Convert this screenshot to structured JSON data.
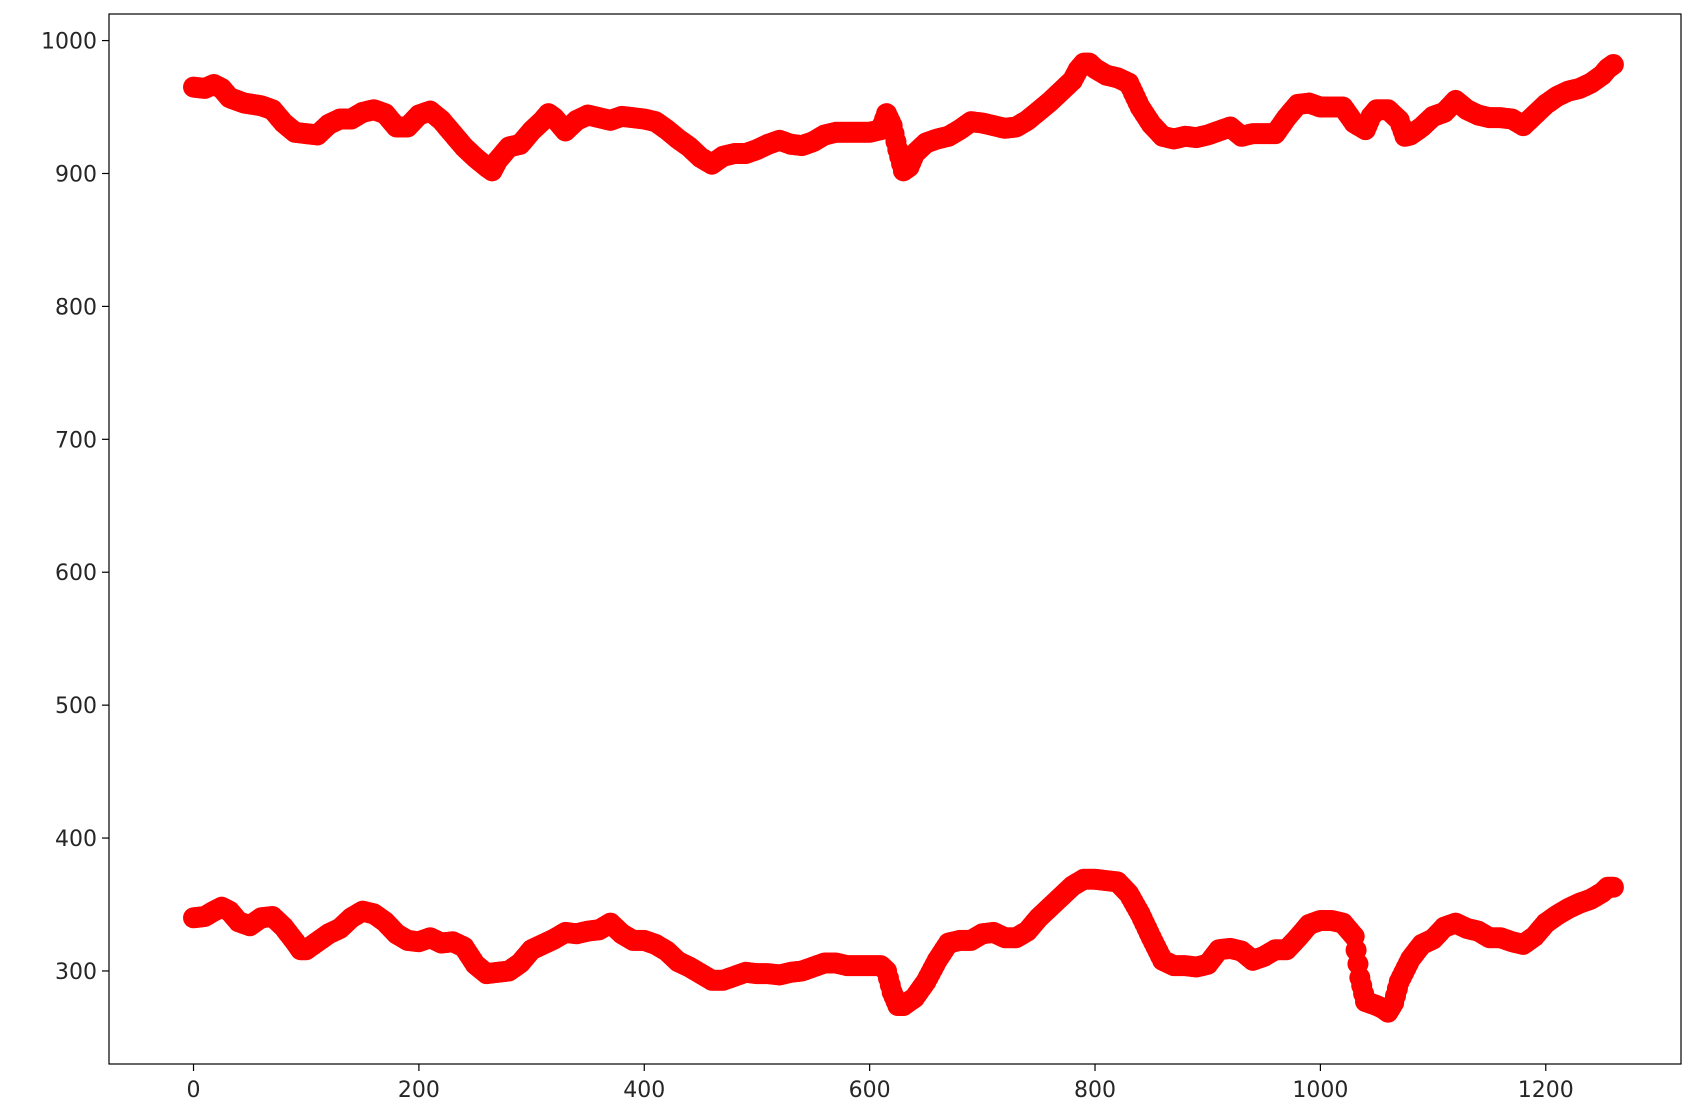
{
  "chart_data": {
    "type": "scatter",
    "title": "",
    "xlabel": "",
    "ylabel": "",
    "xlim": [
      -75,
      1320
    ],
    "ylim": [
      230,
      1020
    ],
    "xticks": [
      0,
      200,
      400,
      600,
      800,
      1000,
      1200
    ],
    "xtick_labels": [
      "0",
      "200",
      "400",
      "600",
      "800",
      "1000",
      "1200"
    ],
    "yticks": [
      300,
      400,
      500,
      600,
      700,
      800,
      900,
      1000
    ],
    "ytick_labels": [
      "300",
      "400",
      "500",
      "600",
      "700",
      "800",
      "900",
      "1000"
    ],
    "grid": false,
    "legend": "none",
    "marker_color": "#ff0000",
    "series": [
      {
        "points": [
          [
            0,
            965
          ],
          [
            10,
            964
          ],
          [
            18,
            967
          ],
          [
            25,
            964
          ],
          [
            32,
            957
          ],
          [
            45,
            953
          ],
          [
            60,
            951
          ],
          [
            70,
            948
          ],
          [
            80,
            938
          ],
          [
            90,
            931
          ],
          [
            100,
            930
          ],
          [
            110,
            929
          ],
          [
            120,
            937
          ],
          [
            130,
            941
          ],
          [
            140,
            941
          ],
          [
            150,
            946
          ],
          [
            160,
            948
          ],
          [
            170,
            945
          ],
          [
            180,
            935
          ],
          [
            190,
            935
          ],
          [
            200,
            944
          ],
          [
            210,
            947
          ],
          [
            220,
            940
          ],
          [
            230,
            930
          ],
          [
            240,
            920
          ],
          [
            250,
            912
          ],
          [
            260,
            905
          ],
          [
            265,
            902
          ],
          [
            270,
            910
          ],
          [
            280,
            920
          ],
          [
            290,
            922
          ],
          [
            300,
            932
          ],
          [
            310,
            940
          ],
          [
            315,
            945
          ],
          [
            320,
            942
          ],
          [
            330,
            932
          ],
          [
            340,
            940
          ],
          [
            350,
            944
          ],
          [
            360,
            942
          ],
          [
            370,
            940
          ],
          [
            380,
            943
          ],
          [
            390,
            942
          ],
          [
            400,
            941
          ],
          [
            410,
            939
          ],
          [
            420,
            933
          ],
          [
            430,
            926
          ],
          [
            440,
            920
          ],
          [
            450,
            912
          ],
          [
            460,
            907
          ],
          [
            470,
            913
          ],
          [
            480,
            915
          ],
          [
            490,
            915
          ],
          [
            500,
            918
          ],
          [
            510,
            922
          ],
          [
            520,
            925
          ],
          [
            530,
            922
          ],
          [
            540,
            921
          ],
          [
            550,
            924
          ],
          [
            560,
            929
          ],
          [
            570,
            931
          ],
          [
            580,
            931
          ],
          [
            590,
            931
          ],
          [
            600,
            931
          ],
          [
            610,
            933
          ],
          [
            615,
            945
          ],
          [
            620,
            936
          ],
          [
            625,
            918
          ],
          [
            630,
            902
          ],
          [
            635,
            905
          ],
          [
            640,
            915
          ],
          [
            650,
            923
          ],
          [
            660,
            926
          ],
          [
            670,
            928
          ],
          [
            680,
            933
          ],
          [
            690,
            939
          ],
          [
            700,
            938
          ],
          [
            710,
            936
          ],
          [
            720,
            934
          ],
          [
            730,
            935
          ],
          [
            740,
            940
          ],
          [
            750,
            947
          ],
          [
            760,
            954
          ],
          [
            770,
            962
          ],
          [
            780,
            970
          ],
          [
            785,
            978
          ],
          [
            790,
            983
          ],
          [
            795,
            983
          ],
          [
            800,
            979
          ],
          [
            810,
            974
          ],
          [
            820,
            972
          ],
          [
            830,
            968
          ],
          [
            840,
            950
          ],
          [
            850,
            937
          ],
          [
            860,
            928
          ],
          [
            870,
            926
          ],
          [
            880,
            928
          ],
          [
            890,
            927
          ],
          [
            900,
            929
          ],
          [
            910,
            932
          ],
          [
            920,
            935
          ],
          [
            930,
            928
          ],
          [
            940,
            930
          ],
          [
            950,
            930
          ],
          [
            960,
            930
          ],
          [
            970,
            942
          ],
          [
            980,
            952
          ],
          [
            990,
            953
          ],
          [
            1000,
            950
          ],
          [
            1010,
            950
          ],
          [
            1020,
            950
          ],
          [
            1030,
            938
          ],
          [
            1040,
            933
          ],
          [
            1045,
            943
          ],
          [
            1050,
            948
          ],
          [
            1060,
            948
          ],
          [
            1070,
            940
          ],
          [
            1075,
            928
          ],
          [
            1080,
            929
          ],
          [
            1090,
            935
          ],
          [
            1100,
            943
          ],
          [
            1110,
            946
          ],
          [
            1120,
            955
          ],
          [
            1130,
            948
          ],
          [
            1140,
            944
          ],
          [
            1150,
            942
          ],
          [
            1160,
            942
          ],
          [
            1170,
            941
          ],
          [
            1180,
            936
          ],
          [
            1190,
            944
          ],
          [
            1200,
            952
          ],
          [
            1210,
            958
          ],
          [
            1220,
            962
          ],
          [
            1230,
            964
          ],
          [
            1240,
            968
          ],
          [
            1250,
            974
          ],
          [
            1255,
            979
          ],
          [
            1260,
            982
          ]
        ]
      },
      {
        "points": [
          [
            0,
            340
          ],
          [
            10,
            341
          ],
          [
            18,
            345
          ],
          [
            25,
            348
          ],
          [
            32,
            345
          ],
          [
            40,
            337
          ],
          [
            50,
            334
          ],
          [
            60,
            340
          ],
          [
            70,
            341
          ],
          [
            80,
            333
          ],
          [
            90,
            322
          ],
          [
            95,
            316
          ],
          [
            100,
            316
          ],
          [
            110,
            322
          ],
          [
            120,
            328
          ],
          [
            130,
            332
          ],
          [
            140,
            340
          ],
          [
            150,
            345
          ],
          [
            160,
            343
          ],
          [
            170,
            337
          ],
          [
            180,
            328
          ],
          [
            190,
            323
          ],
          [
            200,
            322
          ],
          [
            210,
            325
          ],
          [
            220,
            321
          ],
          [
            230,
            322
          ],
          [
            240,
            318
          ],
          [
            250,
            305
          ],
          [
            260,
            298
          ],
          [
            270,
            299
          ],
          [
            280,
            300
          ],
          [
            290,
            306
          ],
          [
            300,
            316
          ],
          [
            310,
            320
          ],
          [
            320,
            324
          ],
          [
            330,
            329
          ],
          [
            340,
            328
          ],
          [
            350,
            330
          ],
          [
            360,
            331
          ],
          [
            370,
            336
          ],
          [
            380,
            328
          ],
          [
            390,
            323
          ],
          [
            400,
            323
          ],
          [
            410,
            320
          ],
          [
            420,
            315
          ],
          [
            430,
            307
          ],
          [
            440,
            303
          ],
          [
            450,
            298
          ],
          [
            460,
            293
          ],
          [
            470,
            293
          ],
          [
            480,
            296
          ],
          [
            490,
            299
          ],
          [
            500,
            298
          ],
          [
            510,
            298
          ],
          [
            520,
            297
          ],
          [
            530,
            299
          ],
          [
            540,
            300
          ],
          [
            550,
            303
          ],
          [
            560,
            306
          ],
          [
            570,
            306
          ],
          [
            580,
            304
          ],
          [
            590,
            304
          ],
          [
            600,
            304
          ],
          [
            610,
            304
          ],
          [
            615,
            300
          ],
          [
            620,
            284
          ],
          [
            625,
            274
          ],
          [
            630,
            274
          ],
          [
            640,
            280
          ],
          [
            650,
            292
          ],
          [
            660,
            308
          ],
          [
            670,
            321
          ],
          [
            680,
            323
          ],
          [
            690,
            323
          ],
          [
            700,
            328
          ],
          [
            710,
            329
          ],
          [
            720,
            325
          ],
          [
            730,
            325
          ],
          [
            740,
            330
          ],
          [
            750,
            340
          ],
          [
            760,
            348
          ],
          [
            770,
            356
          ],
          [
            780,
            364
          ],
          [
            790,
            369
          ],
          [
            800,
            369
          ],
          [
            810,
            368
          ],
          [
            820,
            367
          ],
          [
            830,
            358
          ],
          [
            840,
            343
          ],
          [
            850,
            325
          ],
          [
            860,
            308
          ],
          [
            870,
            304
          ],
          [
            880,
            304
          ],
          [
            890,
            303
          ],
          [
            900,
            305
          ],
          [
            910,
            316
          ],
          [
            920,
            317
          ],
          [
            930,
            315
          ],
          [
            940,
            308
          ],
          [
            950,
            311
          ],
          [
            960,
            316
          ],
          [
            970,
            316
          ],
          [
            980,
            325
          ],
          [
            990,
            335
          ],
          [
            1000,
            338
          ],
          [
            1010,
            338
          ],
          [
            1020,
            336
          ],
          [
            1030,
            326
          ],
          [
            1035,
            295
          ],
          [
            1040,
            277
          ],
          [
            1050,
            274
          ],
          [
            1055,
            272
          ],
          [
            1060,
            269
          ],
          [
            1065,
            276
          ],
          [
            1070,
            292
          ],
          [
            1080,
            309
          ],
          [
            1090,
            320
          ],
          [
            1100,
            324
          ],
          [
            1110,
            333
          ],
          [
            1120,
            336
          ],
          [
            1130,
            332
          ],
          [
            1140,
            330
          ],
          [
            1150,
            325
          ],
          [
            1160,
            325
          ],
          [
            1170,
            322
          ],
          [
            1180,
            320
          ],
          [
            1190,
            326
          ],
          [
            1200,
            336
          ],
          [
            1210,
            342
          ],
          [
            1220,
            347
          ],
          [
            1230,
            351
          ],
          [
            1240,
            354
          ],
          [
            1250,
            359
          ],
          [
            1255,
            363
          ],
          [
            1260,
            363
          ]
        ]
      }
    ]
  }
}
